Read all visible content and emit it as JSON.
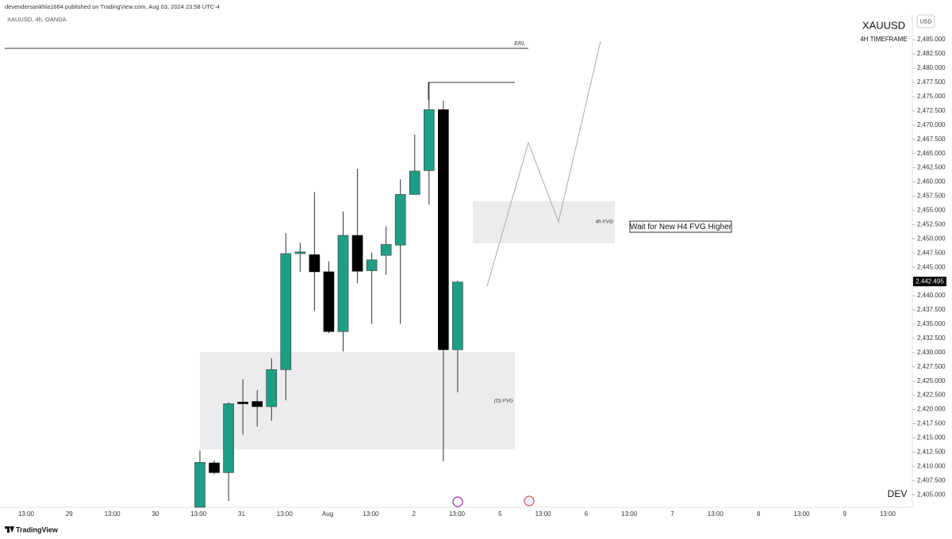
{
  "chart_data": {
    "type": "candlestick",
    "published_line": "devendersankhla1664 published on TradingView.com, Aug 03, 2024 23:58 UTC-4",
    "instrument": "XAUUSD, 4h, OANDA",
    "currency": "USD",
    "symbol": "XAUUSD",
    "timeframe": "4H TIMEFRAME",
    "author_tag": "DEV",
    "brand": "TradingView",
    "erl_label": "ERL",
    "daily_fvg_label": "(D) FVG",
    "h4_fvg_label": "4h FVG",
    "note": "Wait for New H4 FVG Higher",
    "up_color": "#1f9e86",
    "down_color": "#000000",
    "open": [
      2402.8,
      2410.6,
      2408.9,
      2421.3,
      2421.4,
      2420.5,
      2427.0,
      2447.4,
      2447.2,
      2444.2,
      2433.7,
      2450.6,
      2444.4,
      2447.1,
      2448.9,
      2457.8,
      2462.0,
      2472.7,
      2430.5
    ],
    "high": [
      2412.8,
      2411.0,
      2421.3,
      2425.3,
      2423.4,
      2429.0,
      2451.0,
      2449.3,
      2458.2,
      2446.0,
      2454.8,
      2462.3,
      2447.6,
      2452.2,
      2460.5,
      2468.3,
      2477.5,
      2474.3,
      2442.6
    ],
    "low": [
      2402.8,
      2408.6,
      2403.9,
      2415.6,
      2417.0,
      2418.0,
      2421.6,
      2444.2,
      2437.3,
      2433.4,
      2430.2,
      2442.2,
      2435.0,
      2443.7,
      2435.0,
      2457.8,
      2456.0,
      2410.9,
      2423.0
    ],
    "close": [
      2410.7,
      2408.9,
      2421.0,
      2421.0,
      2420.5,
      2427.0,
      2447.4,
      2447.7,
      2444.2,
      2433.7,
      2450.6,
      2444.3,
      2446.3,
      2449.0,
      2457.8,
      2461.9,
      2472.7,
      2430.5,
      2442.4
    ],
    "last_price": {
      "value": 2442.495,
      "label": "2,442.495"
    },
    "ylim": [
      2402.8,
      2489.2
    ],
    "yticks": [
      {
        "value": 2405,
        "label": "2,405.000"
      },
      {
        "value": 2407.5,
        "label": "2,407.500"
      },
      {
        "value": 2410,
        "label": "2,410.000"
      },
      {
        "value": 2412.5,
        "label": "2,412.500"
      },
      {
        "value": 2415,
        "label": "2,415.000"
      },
      {
        "value": 2417.5,
        "label": "2,417.500"
      },
      {
        "value": 2420,
        "label": "2,420.000"
      },
      {
        "value": 2422.5,
        "label": "2,422.500"
      },
      {
        "value": 2425,
        "label": "2,425.000"
      },
      {
        "value": 2427.5,
        "label": "2,427.500"
      },
      {
        "value": 2430,
        "label": "2,430.000"
      },
      {
        "value": 2432.5,
        "label": "2,432.500"
      },
      {
        "value": 2435,
        "label": "2,435.000"
      },
      {
        "value": 2437.5,
        "label": "2,437.500"
      },
      {
        "value": 2440,
        "label": "2,440.000"
      },
      {
        "value": 2442.5,
        "label": "2,442.500"
      },
      {
        "value": 2445,
        "label": "2,445.000"
      },
      {
        "value": 2447.5,
        "label": "2,447.500"
      },
      {
        "value": 2450,
        "label": "2,450.000"
      },
      {
        "value": 2452.5,
        "label": "2,452.500"
      },
      {
        "value": 2455,
        "label": "2,455.000"
      },
      {
        "value": 2457.5,
        "label": "2,457.500"
      },
      {
        "value": 2460,
        "label": "2,460.000"
      },
      {
        "value": 2462.5,
        "label": "2,462.500"
      },
      {
        "value": 2465,
        "label": "2,465.000"
      },
      {
        "value": 2467.5,
        "label": "2,467.500"
      },
      {
        "value": 2470,
        "label": "2,470.000"
      },
      {
        "value": 2472.5,
        "label": "2,472.500"
      },
      {
        "value": 2475,
        "label": "2,475.000"
      },
      {
        "value": 2477.5,
        "label": "2,477.500"
      },
      {
        "value": 2480,
        "label": "2,480.000"
      },
      {
        "value": 2482.5,
        "label": "2,482.500"
      },
      {
        "value": 2485,
        "label": "2,485.000"
      }
    ],
    "x_axis_labels": [
      "13:00",
      "29",
      "13:00",
      "30",
      "13:00",
      "31",
      "13:00",
      "Aug",
      "13:00",
      "2",
      "13:00",
      "5",
      "13:00",
      "6",
      "13:00",
      "7",
      "13:00",
      "8",
      "13:00",
      "9",
      "13:00"
    ]
  }
}
